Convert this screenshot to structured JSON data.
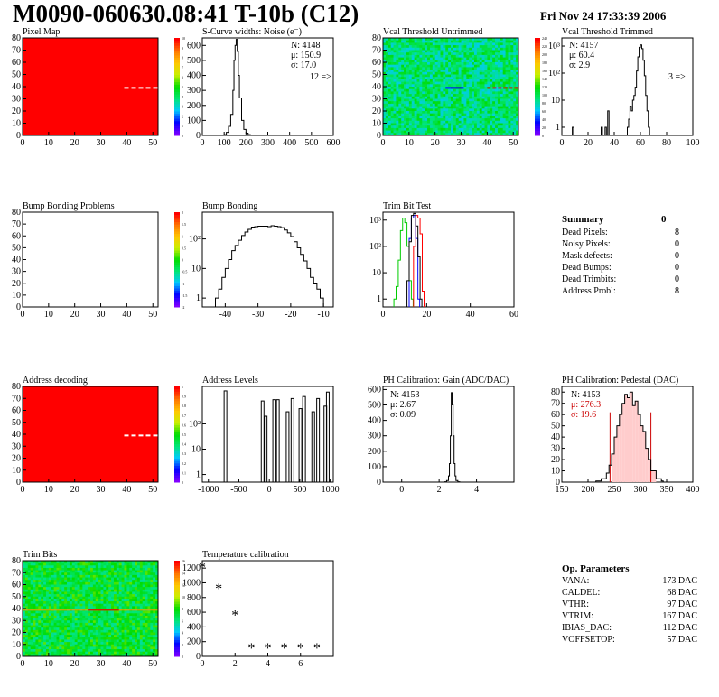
{
  "title": "M0090-060630.08:41 T-10b (C12)",
  "date": "Fri Nov 24 17:33:39 2006",
  "panels": {
    "pixel_map": "Pixel Map",
    "scurve": "S-Curve widths: Noise (e⁻)",
    "vcal_untrimmed": "Vcal Threshold Untrimmed",
    "vcal_trimmed": "Vcal Threshold Trimmed",
    "bump_problems": "Bump Bonding Problems",
    "bump_bonding": "Bump Bonding",
    "trim_bit_test": "Trim Bit Test",
    "address_decoding": "Address decoding",
    "address_levels": "Address Levels",
    "ph_gain": "PH Calibration: Gain (ADC/DAC)",
    "ph_pedestal": "PH Calibration: Pedestal (DAC)",
    "trim_bits": "Trim Bits",
    "temperature": "Temperature calibration"
  },
  "stats": {
    "scurve": {
      "n": "N: 4148",
      "mu": "μ: 150.9",
      "sigma": "σ: 17.0",
      "over": "12 =>"
    },
    "trimmed": {
      "n": "N: 4157",
      "mu": "μ: 60.4",
      "sigma": "σ:  2.9",
      "over": "3 =>"
    },
    "gain": {
      "n": "N: 4153",
      "mu": "μ: 2.67",
      "sigma": "σ: 0.09"
    },
    "pedestal": {
      "n": "N: 4153",
      "mu": "μ: 276.3",
      "sigma": "σ: 19.6"
    }
  },
  "summary": {
    "title": "Summary",
    "value": "0",
    "rows": [
      {
        "label": "Dead Pixels:",
        "value": "8"
      },
      {
        "label": "Noisy Pixels:",
        "value": "0"
      },
      {
        "label": "Mask defects:",
        "value": "0"
      },
      {
        "label": "Dead Bumps:",
        "value": "0"
      },
      {
        "label": "Dead Trimbits:",
        "value": "0"
      },
      {
        "label": "Address Probl:",
        "value": "8"
      }
    ]
  },
  "op_params": {
    "title": "Op. Parameters",
    "rows": [
      {
        "label": "VANA:",
        "value": "173 DAC"
      },
      {
        "label": "CALDEL:",
        "value": "68 DAC"
      },
      {
        "label": "VTHR:",
        "value": "97 DAC"
      },
      {
        "label": "VTRIM:",
        "value": "167 DAC"
      },
      {
        "label": "IBIAS_DAC:",
        "value": "112 DAC"
      },
      {
        "label": "VOFFSETOP:",
        "value": "57 DAC"
      }
    ]
  },
  "colors": {
    "red": "#ff0000",
    "green": "#00cc00",
    "blue": "#0000ff",
    "pedestal_fit": "#cc0000"
  },
  "chart_data": [
    {
      "type": "heatmap",
      "panel": "pixel_map",
      "xlim": [
        0,
        52
      ],
      "ylim": [
        0,
        80
      ],
      "xticks": [
        "0",
        "10",
        "20",
        "30",
        "40",
        "50"
      ],
      "yticks": [
        "0",
        "10",
        "20",
        "30",
        "40",
        "50",
        "60",
        "70",
        "80"
      ],
      "zticks": [
        "0",
        "1",
        "2",
        "3",
        "4",
        "5",
        "6",
        "7",
        "8",
        "9",
        "10"
      ]
    },
    {
      "type": "histogram",
      "panel": "scurve",
      "xlim": [
        0,
        600
      ],
      "ylim": [
        0,
        650
      ],
      "xticks": [
        "0",
        "100",
        "200",
        "300",
        "400",
        "500",
        "600"
      ],
      "yticks": [
        "0",
        "100",
        "200",
        "300",
        "400",
        "500",
        "600"
      ],
      "x": [
        60,
        80,
        100,
        110,
        120,
        130,
        140,
        145,
        150,
        155,
        160,
        165,
        170,
        180,
        190,
        200,
        210,
        220,
        240
      ],
      "y": [
        0,
        0,
        5,
        20,
        60,
        140,
        300,
        500,
        600,
        640,
        560,
        400,
        250,
        100,
        40,
        15,
        5,
        2,
        0
      ]
    },
    {
      "type": "heatmap",
      "panel": "vcal_untrimmed",
      "xlim": [
        0,
        52
      ],
      "ylim": [
        0,
        80
      ],
      "xticks": [
        "0",
        "10",
        "20",
        "30",
        "40",
        "50"
      ],
      "yticks": [
        "0",
        "10",
        "20",
        "30",
        "40",
        "50",
        "60",
        "70",
        "80"
      ],
      "zticks": [
        "0",
        "20",
        "40",
        "60",
        "80",
        "100",
        "120",
        "140",
        "160",
        "180",
        "200",
        "220",
        "240"
      ]
    },
    {
      "type": "histogram",
      "panel": "vcal_trimmed",
      "log": true,
      "xlim": [
        0,
        100
      ],
      "ylim": [
        0.5,
        2000
      ],
      "xticks": [
        "0",
        "20",
        "40",
        "60",
        "80",
        "100"
      ],
      "yticks": [
        "1",
        "10",
        "10²",
        "10³"
      ],
      "x": [
        8,
        9,
        30,
        31,
        33,
        34,
        35,
        36,
        45,
        46,
        50,
        51,
        52,
        53,
        54,
        55,
        56,
        57,
        58,
        59,
        60,
        61,
        62,
        63,
        64,
        65,
        66,
        67
      ],
      "y": [
        1,
        0,
        1,
        0,
        1,
        0,
        4,
        0,
        0,
        0,
        1,
        2,
        6,
        4,
        10,
        15,
        30,
        120,
        400,
        900,
        1100,
        800,
        300,
        80,
        15,
        4,
        1,
        0
      ]
    },
    {
      "type": "heatmap",
      "panel": "bump_problems",
      "xlim": [
        0,
        52
      ],
      "ylim": [
        0,
        80
      ],
      "xticks": [
        "0",
        "10",
        "20",
        "30",
        "40",
        "50"
      ],
      "yticks": [
        "0",
        "10",
        "20",
        "30",
        "40",
        "50",
        "60",
        "70",
        "80"
      ],
      "zticks": [
        "-2",
        "-1.5",
        "-1",
        "-0.5",
        "0",
        "0.5",
        "1",
        "1.5",
        "2"
      ]
    },
    {
      "type": "histogram",
      "panel": "bump_bonding",
      "log": true,
      "xlim": [
        -47,
        -7
      ],
      "ylim": [
        0.5,
        800
      ],
      "xticks": [
        "-40",
        "-30",
        "-20",
        "-10"
      ],
      "yticks": [
        "1",
        "10",
        "10²"
      ],
      "x": [
        -43,
        -42,
        -41,
        -40,
        -39,
        -38,
        -37,
        -36,
        -35,
        -34,
        -33,
        -32,
        -31,
        -30,
        -29,
        -28,
        -27,
        -26,
        -25,
        -24,
        -23,
        -22,
        -21,
        -20,
        -19,
        -18,
        -17,
        -16,
        -15,
        -14,
        -13,
        -12,
        -11,
        -10
      ],
      "y": [
        1,
        2,
        5,
        10,
        20,
        40,
        60,
        90,
        130,
        170,
        210,
        250,
        260,
        270,
        270,
        270,
        260,
        280,
        270,
        260,
        240,
        200,
        160,
        120,
        80,
        50,
        30,
        18,
        10,
        5,
        3,
        2,
        1,
        0
      ]
    },
    {
      "type": "histogram",
      "panel": "trim_bit_test",
      "log": true,
      "xlim": [
        0,
        60
      ],
      "ylim": [
        0.5,
        2000
      ],
      "xticks": [
        "0",
        "20",
        "40",
        "60"
      ],
      "yticks": [
        "1",
        "10",
        "10²",
        "10³"
      ],
      "series": [
        {
          "name": "",
          "color": "#00cc00",
          "x": [
            5,
            6,
            7,
            8,
            9,
            10,
            11,
            12,
            13
          ],
          "y": [
            1,
            3,
            30,
            400,
            1200,
            800,
            100,
            5,
            1
          ]
        },
        {
          "name": "",
          "color": "#ff0000",
          "x": [
            14,
            15,
            16,
            17,
            18
          ],
          "y": [
            100,
            1500,
            1200,
            300,
            2
          ]
        },
        {
          "name": "",
          "color": "#0000ff",
          "x": [
            12,
            13,
            14,
            15,
            16
          ],
          "y": [
            200,
            1200,
            1500,
            200,
            1
          ]
        },
        {
          "name": "",
          "color": "#000000",
          "x": [
            11,
            12,
            13,
            14,
            15,
            16,
            17
          ],
          "y": [
            5,
            150,
            1500,
            1800,
            600,
            40,
            1
          ]
        }
      ]
    },
    {
      "type": "heatmap",
      "panel": "address_decoding",
      "xlim": [
        0,
        52
      ],
      "ylim": [
        0,
        80
      ],
      "xticks": [
        "0",
        "10",
        "20",
        "30",
        "40",
        "50"
      ],
      "yticks": [
        "0",
        "10",
        "20",
        "30",
        "40",
        "50",
        "60",
        "70",
        "80"
      ],
      "zticks": [
        "0",
        "0.1",
        "0.2",
        "0.3",
        "0.4",
        "0.5",
        "0.6",
        "0.7",
        "0.8",
        "0.9",
        "1"
      ]
    },
    {
      "type": "histogram",
      "panel": "address_levels",
      "log": true,
      "xlim": [
        -1100,
        1050
      ],
      "ylim": [
        0.5,
        3000
      ],
      "xticks": [
        "-1000",
        "-500",
        "0",
        "500",
        "1000"
      ],
      "yticks": [
        "1",
        "10",
        "10²"
      ],
      "x": [
        -720,
        -110,
        -60,
        80,
        140,
        300,
        380,
        510,
        570,
        720,
        800,
        920,
        960
      ],
      "y": [
        2000,
        800,
        200,
        900,
        900,
        300,
        1000,
        400,
        1200,
        300,
        1000,
        500,
        1800
      ]
    },
    {
      "type": "histogram",
      "panel": "ph_gain",
      "xlim": [
        -1,
        6
      ],
      "ylim": [
        0,
        620
      ],
      "xticks": [
        "0",
        "2",
        "4"
      ],
      "yticks": [
        "0",
        "100",
        "200",
        "300",
        "400",
        "500",
        "600"
      ],
      "x": [
        2.2,
        2.3,
        2.4,
        2.5,
        2.55,
        2.6,
        2.65,
        2.7,
        2.75,
        2.8,
        2.85,
        2.9,
        3.0,
        3.1
      ],
      "y": [
        0,
        2,
        10,
        40,
        120,
        300,
        580,
        500,
        300,
        120,
        40,
        10,
        2,
        0
      ]
    },
    {
      "type": "histogram",
      "panel": "ph_pedestal",
      "xlim": [
        150,
        400
      ],
      "ylim": [
        0,
        85
      ],
      "xticks": [
        "150",
        "200",
        "250",
        "300",
        "350",
        "400"
      ],
      "yticks": [
        "0",
        "10",
        "20",
        "30",
        "40",
        "50",
        "60",
        "70",
        "80"
      ],
      "x": [
        215,
        225,
        235,
        240,
        245,
        250,
        255,
        260,
        265,
        270,
        275,
        280,
        285,
        290,
        295,
        300,
        305,
        310,
        315,
        320,
        330,
        340
      ],
      "y": [
        1,
        3,
        8,
        15,
        25,
        40,
        50,
        60,
        70,
        78,
        75,
        80,
        68,
        72,
        60,
        50,
        45,
        30,
        20,
        10,
        3,
        1
      ],
      "fit_lines": [
        242,
        320
      ]
    },
    {
      "type": "heatmap",
      "panel": "trim_bits",
      "xlim": [
        0,
        52
      ],
      "ylim": [
        0,
        80
      ],
      "xticks": [
        "0",
        "10",
        "20",
        "30",
        "40",
        "50"
      ],
      "yticks": [
        "0",
        "10",
        "20",
        "30",
        "40",
        "50",
        "60",
        "70",
        "80"
      ],
      "zticks": [
        "0",
        "2",
        "4",
        "6",
        "8",
        "10",
        "12",
        "14",
        "16"
      ]
    },
    {
      "type": "scatter",
      "panel": "temperature",
      "xlim": [
        0,
        8
      ],
      "ylim": [
        0,
        1300
      ],
      "xticks": [
        "0",
        "2",
        "4",
        "6"
      ],
      "yticks": [
        "0",
        "200",
        "400",
        "600",
        "800",
        "1000",
        "1200"
      ],
      "x": [
        0,
        1,
        2,
        3,
        4,
        5,
        6,
        7
      ],
      "y": [
        1210,
        920,
        560,
        110,
        110,
        110,
        110,
        110
      ]
    }
  ]
}
